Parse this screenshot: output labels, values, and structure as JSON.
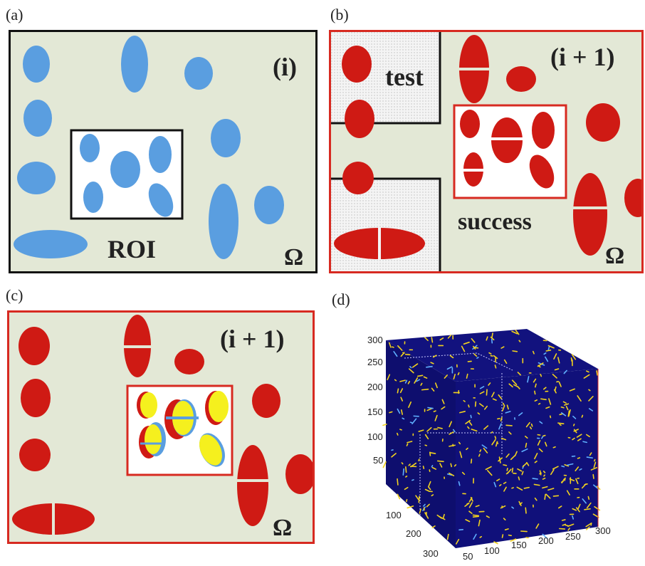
{
  "panels": {
    "a": {
      "letter": "(a)",
      "iteration": "(i)",
      "roi_label": "ROI",
      "domain_symbol": "Ω"
    },
    "b": {
      "letter": "(b)",
      "iteration": "(i + 1)",
      "test_label": "test",
      "success_label": "success",
      "domain_symbol": "Ω"
    },
    "c": {
      "letter": "(c)",
      "iteration": "(i + 1)",
      "domain_symbol": "Ω"
    },
    "d": {
      "letter": "(d)"
    }
  },
  "cube_axes": {
    "z_ticks": [
      "300",
      "250",
      "200",
      "150",
      "100",
      "50"
    ],
    "depth_ticks": [
      "100",
      "200",
      "300"
    ],
    "x_ticks": [
      "50",
      "100",
      "150",
      "200",
      "250",
      "300"
    ]
  },
  "colors": {
    "background": "#e3e8d6",
    "blue_particle": "#5a9ee0",
    "red_particle": "#cf1a14",
    "yellow_particle": "#f5f01e",
    "cube_fill": "#10107a",
    "border_black": "#111111",
    "border_red": "#d72a21"
  }
}
